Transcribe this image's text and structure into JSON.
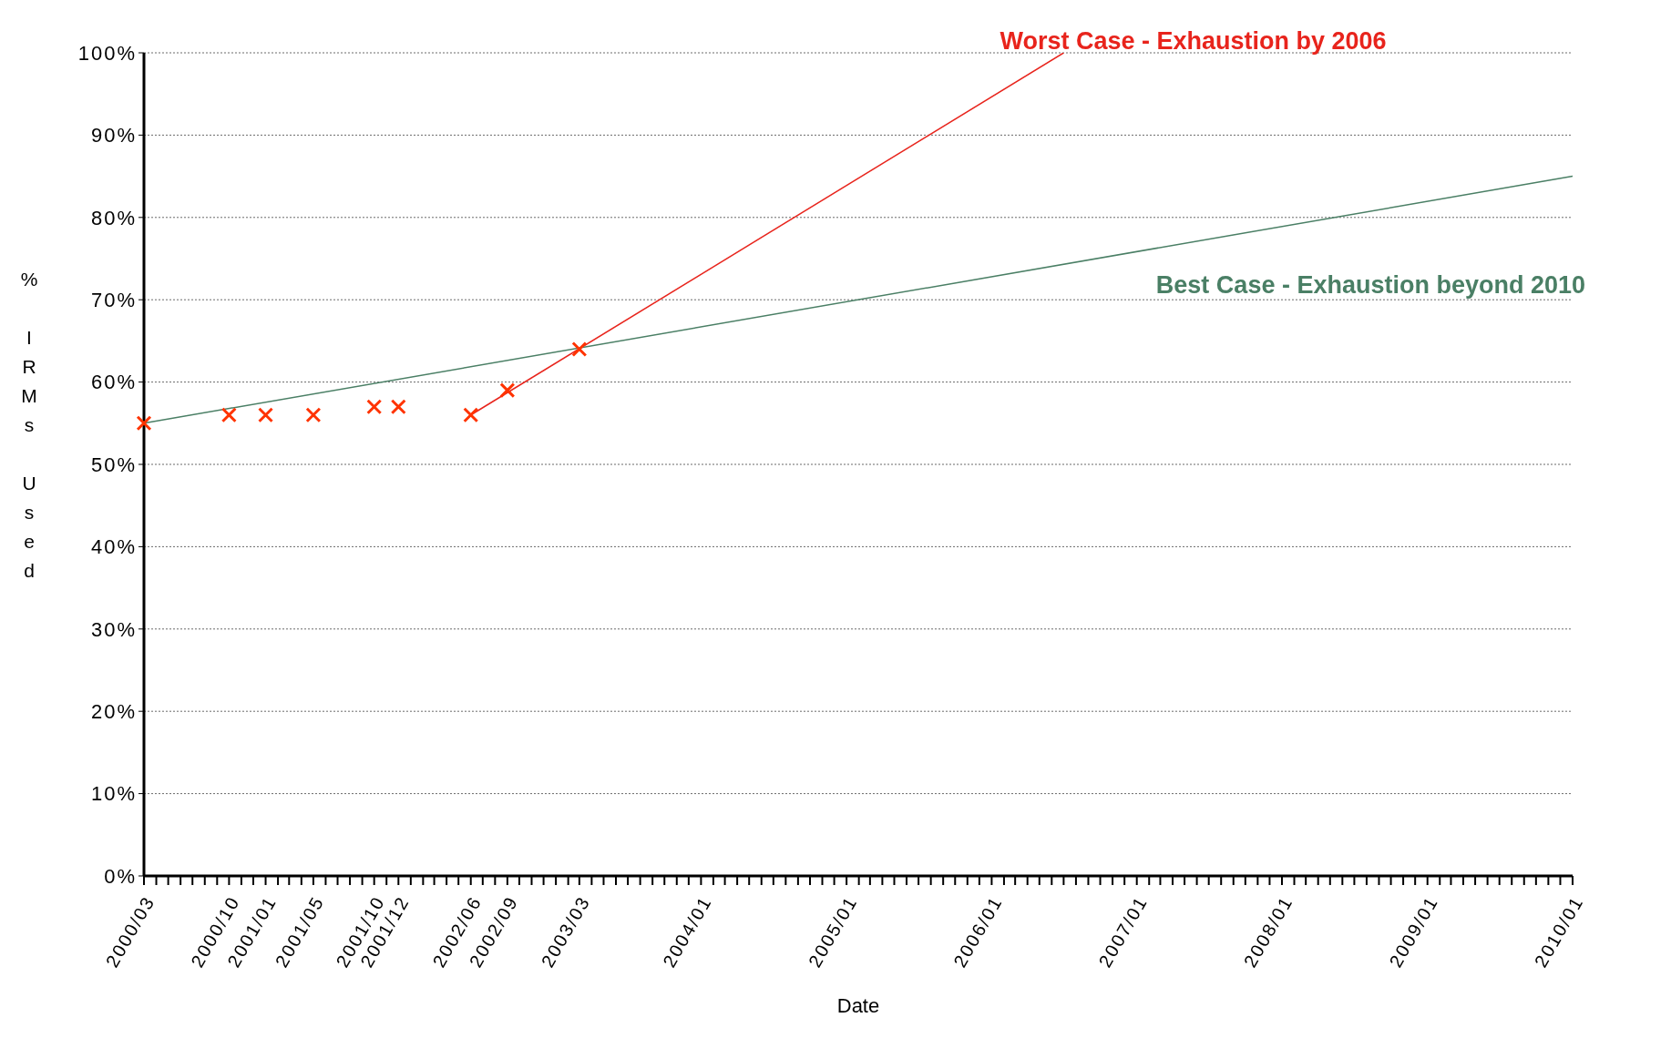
{
  "chart_data": {
    "type": "scatter",
    "xlabel": "Date",
    "ylabel": "% IRMs Used",
    "marker": "cross",
    "grid": "y",
    "x": [
      "2000-03",
      "2000-10",
      "2001-01",
      "2001-05",
      "2001-10",
      "2001-12",
      "2002-06",
      "2002-09",
      "2003-03"
    ],
    "series": [
      {
        "color": "#ff3300",
        "values": [
          55,
          56,
          56,
          56,
          57,
          57,
          56,
          59,
          64
        ]
      },
      {
        "type": "line",
        "name": "Worst Case - Exhaustion by 2006",
        "color": "#e8241c",
        "marker": "none",
        "x": [
          "2002-06",
          "2006-07"
        ],
        "values": [
          56,
          100
        ]
      },
      {
        "type": "line",
        "name": "Best Case - Exhaustion beyond 2010",
        "color": "#4a7f65",
        "marker": "none",
        "x": [
          "2000-03",
          "2010-01"
        ],
        "values": [
          55,
          85
        ]
      }
    ],
    "ylim": [
      0,
      100
    ],
    "yticks": [
      {
        "value": 0,
        "label": "0%"
      },
      {
        "value": 10,
        "label": "10%"
      },
      {
        "value": 20,
        "label": "20%"
      },
      {
        "value": 30,
        "label": "30%"
      },
      {
        "value": 40,
        "label": "40%"
      },
      {
        "value": 50,
        "label": "50%"
      },
      {
        "value": 60,
        "label": "60%"
      },
      {
        "value": 70,
        "label": "70%"
      },
      {
        "value": 80,
        "label": "80%"
      },
      {
        "value": 90,
        "label": "90%"
      },
      {
        "value": 100,
        "label": "100%"
      }
    ],
    "xlim": [
      "2000-03",
      "2010-01"
    ],
    "xticks": [
      {
        "value": "2000-03",
        "label": "2000/03"
      },
      {
        "value": "2000-04",
        "label": null
      },
      {
        "value": "2000-05",
        "label": null
      },
      {
        "value": "2000-06",
        "label": null
      },
      {
        "value": "2000-07",
        "label": null
      },
      {
        "value": "2000-08",
        "label": null
      },
      {
        "value": "2000-09",
        "label": null
      },
      {
        "value": "2000-10",
        "label": "2000/10"
      },
      {
        "value": "2000-11",
        "label": null
      },
      {
        "value": "2000-12",
        "label": null
      },
      {
        "value": "2001-01",
        "label": "2001/01"
      },
      {
        "value": "2001-02",
        "label": null
      },
      {
        "value": "2001-03",
        "label": null
      },
      {
        "value": "2001-04",
        "label": null
      },
      {
        "value": "2001-05",
        "label": "2001/05"
      },
      {
        "value": "2001-06",
        "label": null
      },
      {
        "value": "2001-07",
        "label": null
      },
      {
        "value": "2001-08",
        "label": null
      },
      {
        "value": "2001-09",
        "label": null
      },
      {
        "value": "2001-10",
        "label": "2001/10"
      },
      {
        "value": "2001-11",
        "label": null
      },
      {
        "value": "2001-12",
        "label": "2001/12"
      },
      {
        "value": "2002-01",
        "label": null
      },
      {
        "value": "2002-02",
        "label": null
      },
      {
        "value": "2002-03",
        "label": null
      },
      {
        "value": "2002-04",
        "label": null
      },
      {
        "value": "2002-05",
        "label": null
      },
      {
        "value": "2002-06",
        "label": "2002/06"
      },
      {
        "value": "2002-07",
        "label": null
      },
      {
        "value": "2002-08",
        "label": null
      },
      {
        "value": "2002-09",
        "label": "2002/09"
      },
      {
        "value": "2002-10",
        "label": null
      },
      {
        "value": "2002-11",
        "label": null
      },
      {
        "value": "2002-12",
        "label": null
      },
      {
        "value": "2003-01",
        "label": null
      },
      {
        "value": "2003-02",
        "label": null
      },
      {
        "value": "2003-03",
        "label": "2003/03"
      },
      {
        "value": "2003-04",
        "label": null
      },
      {
        "value": "2003-05",
        "label": null
      },
      {
        "value": "2003-06",
        "label": null
      },
      {
        "value": "2003-07",
        "label": null
      },
      {
        "value": "2003-08",
        "label": null
      },
      {
        "value": "2003-09",
        "label": null
      },
      {
        "value": "2003-10",
        "label": null
      },
      {
        "value": "2003-11",
        "label": null
      },
      {
        "value": "2003-12",
        "label": null
      },
      {
        "value": "2004-01",
        "label": "2004/01"
      },
      {
        "value": "2004-02",
        "label": null
      },
      {
        "value": "2004-03",
        "label": null
      },
      {
        "value": "2004-04",
        "label": null
      },
      {
        "value": "2004-05",
        "label": null
      },
      {
        "value": "2004-06",
        "label": null
      },
      {
        "value": "2004-07",
        "label": null
      },
      {
        "value": "2004-08",
        "label": null
      },
      {
        "value": "2004-09",
        "label": null
      },
      {
        "value": "2004-10",
        "label": null
      },
      {
        "value": "2004-11",
        "label": null
      },
      {
        "value": "2004-12",
        "label": null
      },
      {
        "value": "2005-01",
        "label": "2005/01"
      },
      {
        "value": "2005-02",
        "label": null
      },
      {
        "value": "2005-03",
        "label": null
      },
      {
        "value": "2005-04",
        "label": null
      },
      {
        "value": "2005-05",
        "label": null
      },
      {
        "value": "2005-06",
        "label": null
      },
      {
        "value": "2005-07",
        "label": null
      },
      {
        "value": "2005-08",
        "label": null
      },
      {
        "value": "2005-09",
        "label": null
      },
      {
        "value": "2005-10",
        "label": null
      },
      {
        "value": "2005-11",
        "label": null
      },
      {
        "value": "2005-12",
        "label": null
      },
      {
        "value": "2006-01",
        "label": "2006/01"
      },
      {
        "value": "2006-02",
        "label": null
      },
      {
        "value": "2006-03",
        "label": null
      },
      {
        "value": "2006-04",
        "label": null
      },
      {
        "value": "2006-05",
        "label": null
      },
      {
        "value": "2006-06",
        "label": null
      },
      {
        "value": "2006-07",
        "label": null
      },
      {
        "value": "2006-08",
        "label": null
      },
      {
        "value": "2006-09",
        "label": null
      },
      {
        "value": "2006-10",
        "label": null
      },
      {
        "value": "2006-11",
        "label": null
      },
      {
        "value": "2006-12",
        "label": null
      },
      {
        "value": "2007-01",
        "label": "2007/01"
      },
      {
        "value": "2007-02",
        "label": null
      },
      {
        "value": "2007-03",
        "label": null
      },
      {
        "value": "2007-04",
        "label": null
      },
      {
        "value": "2007-05",
        "label": null
      },
      {
        "value": "2007-06",
        "label": null
      },
      {
        "value": "2007-07",
        "label": null
      },
      {
        "value": "2007-08",
        "label": null
      },
      {
        "value": "2007-09",
        "label": null
      },
      {
        "value": "2007-10",
        "label": null
      },
      {
        "value": "2007-11",
        "label": null
      },
      {
        "value": "2007-12",
        "label": null
      },
      {
        "value": "2008-01",
        "label": "2008/01"
      },
      {
        "value": "2008-02",
        "label": null
      },
      {
        "value": "2008-03",
        "label": null
      },
      {
        "value": "2008-04",
        "label": null
      },
      {
        "value": "2008-05",
        "label": null
      },
      {
        "value": "2008-06",
        "label": null
      },
      {
        "value": "2008-07",
        "label": null
      },
      {
        "value": "2008-08",
        "label": null
      },
      {
        "value": "2008-09",
        "label": null
      },
      {
        "value": "2008-10",
        "label": null
      },
      {
        "value": "2008-11",
        "label": null
      },
      {
        "value": "2008-12",
        "label": null
      },
      {
        "value": "2009-01",
        "label": "2009/01"
      },
      {
        "value": "2009-02",
        "label": null
      },
      {
        "value": "2009-03",
        "label": null
      },
      {
        "value": "2009-04",
        "label": null
      },
      {
        "value": "2009-05",
        "label": null
      },
      {
        "value": "2009-06",
        "label": null
      },
      {
        "value": "2009-07",
        "label": null
      },
      {
        "value": "2009-08",
        "label": null
      },
      {
        "value": "2009-09",
        "label": null
      },
      {
        "value": "2009-10",
        "label": null
      },
      {
        "value": "2009-11",
        "label": null
      },
      {
        "value": "2009-12",
        "label": null
      },
      {
        "value": "2010-01",
        "label": "2010/01"
      }
    ]
  }
}
